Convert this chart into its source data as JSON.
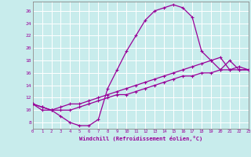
{
  "xlabel": "Windchill (Refroidissement éolien,°C)",
  "bg_color": "#c8ecec",
  "line_color": "#990099",
  "grid_color": "#ffffff",
  "xmin": 0,
  "xmax": 23,
  "ymin": 7,
  "ymax": 27.5,
  "yticks": [
    8,
    10,
    12,
    14,
    16,
    18,
    20,
    22,
    24,
    26
  ],
  "series1_x": [
    0,
    1,
    2,
    3,
    4,
    5,
    6,
    7,
    8,
    9,
    10,
    11,
    12,
    13,
    14,
    15,
    16,
    17,
    18,
    19,
    20,
    21,
    22,
    23
  ],
  "series1_y": [
    11,
    10,
    10,
    9,
    8,
    7.5,
    7.5,
    8.5,
    13.5,
    16.5,
    19.5,
    22,
    24.5,
    26,
    26.5,
    27,
    26.5,
    25,
    19.5,
    18,
    16.5,
    18,
    16.5,
    16.5
  ],
  "series2_x": [
    0,
    1,
    2,
    3,
    4,
    5,
    6,
    7,
    8,
    9,
    10,
    11,
    12,
    13,
    14,
    15,
    16,
    17,
    18,
    19,
    20,
    21,
    22,
    23
  ],
  "series2_y": [
    11,
    10.5,
    10,
    10.5,
    11,
    11,
    11.5,
    12,
    12.5,
    13,
    13.5,
    14,
    14.5,
    15,
    15.5,
    16,
    16.5,
    17,
    17.5,
    18,
    18.5,
    16.5,
    17,
    16.5
  ],
  "series3_x": [
    0,
    1,
    2,
    3,
    4,
    5,
    6,
    7,
    8,
    9,
    10,
    11,
    12,
    13,
    14,
    15,
    16,
    17,
    18,
    19,
    20,
    21,
    22,
    23
  ],
  "series3_y": [
    11,
    10.5,
    10,
    10,
    10,
    10.5,
    11,
    11.5,
    12,
    12.5,
    12.5,
    13,
    13.5,
    14,
    14.5,
    15,
    15.5,
    15.5,
    16,
    16,
    16.5,
    16.5,
    16.5,
    16.5
  ],
  "marker_size": 2.5,
  "linewidth": 0.9
}
